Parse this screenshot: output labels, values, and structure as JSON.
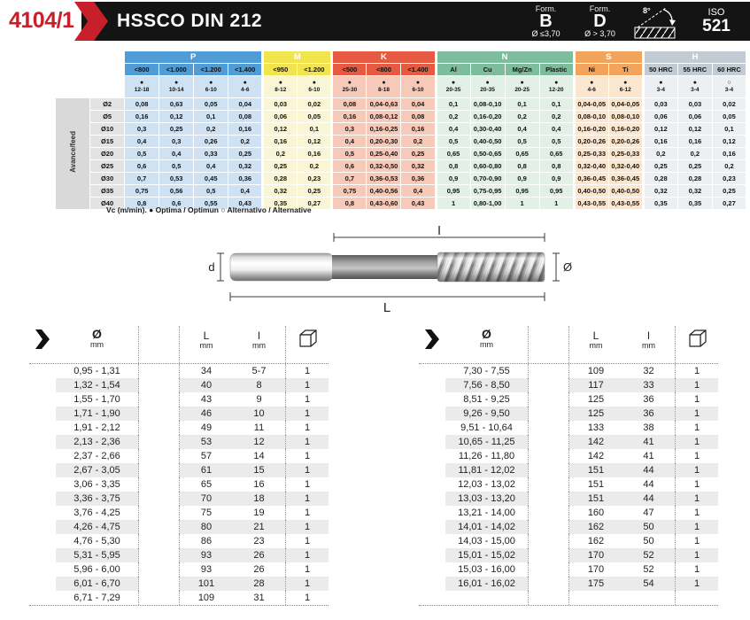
{
  "colors": {
    "accent_red": "#c8202a",
    "header_black": "#141414",
    "stripe": "#ebebeb"
  },
  "header": {
    "code": "4104/1",
    "title": "HSSCO DIN 212",
    "form_b": {
      "line1": "Form.",
      "line2": "B",
      "line3": "Ø ≤3,70"
    },
    "form_d": {
      "line1": "Form.",
      "line2": "D",
      "line3": "Ø > 3,70"
    },
    "angle": "8°",
    "iso": {
      "line1": "ISO",
      "line2": "521"
    }
  },
  "cutting_table": {
    "row_axis_label": "Avance/feed",
    "footnote": "Vc (m/min). ● Optima / Optimun   ○ Alternativo / Alternative",
    "groups": [
      {
        "name": "P",
        "color": "#4f9cd7",
        "tint": "#cfe2f3",
        "cols": [
          {
            "label": "<800",
            "marker": "filled",
            "vc": "12-18"
          },
          {
            "label": "<1.000",
            "marker": "filled",
            "vc": "10-14"
          },
          {
            "label": "<1.200",
            "marker": "filled",
            "vc": "6-10"
          },
          {
            "label": "<1.400",
            "marker": "filled",
            "vc": "4-6"
          }
        ]
      },
      {
        "name": "M",
        "color": "#f2e44c",
        "tint": "#faf5d4",
        "cols": [
          {
            "label": "<950",
            "marker": "filled",
            "vc": "8-12"
          },
          {
            "label": "<1.200",
            "marker": "filled",
            "vc": "6-10"
          }
        ]
      },
      {
        "name": "K",
        "color": "#e55a41",
        "tint": "#f6c9b9",
        "cols": [
          {
            "label": "<500",
            "marker": "filled",
            "vc": "25-30"
          },
          {
            "label": "<800",
            "marker": "filled",
            "vc": "8-18"
          },
          {
            "label": "<1.400",
            "marker": "filled",
            "vc": "6-10"
          }
        ]
      },
      {
        "name": "N",
        "color": "#7dbc9d",
        "tint": "#e3f0e7",
        "cols": [
          {
            "label": "Al",
            "marker": "filled",
            "vc": "20-35"
          },
          {
            "label": "Cu",
            "marker": "filled",
            "vc": "20-35"
          },
          {
            "label": "Mg/Zn",
            "marker": "filled",
            "vc": "20-25"
          },
          {
            "label": "Plastic",
            "marker": "filled",
            "vc": "12-20"
          }
        ]
      },
      {
        "name": "S",
        "color": "#f3a45c",
        "tint": "#fbe7d0",
        "cols": [
          {
            "label": "Ni",
            "marker": "filled",
            "vc": "4-6"
          },
          {
            "label": "Ti",
            "marker": "filled",
            "vc": "6-12"
          }
        ]
      },
      {
        "name": "H",
        "color": "#c2cbd4",
        "tint": "#edf0f3",
        "cols": [
          {
            "label": "50 HRC",
            "marker": "filled",
            "vc": "3-4"
          },
          {
            "label": "55 HRC",
            "marker": "filled",
            "vc": "3-4"
          },
          {
            "label": "60 HRC",
            "marker": "open",
            "vc": "3-4"
          }
        ]
      }
    ],
    "rows": [
      {
        "dia": "Ø2",
        "values": [
          "0,08",
          "0,63",
          "0,05",
          "0,04",
          "0,03",
          "0,02",
          "0,08",
          "0,04-0,63",
          "0,04",
          "0,1",
          "0,08-0,10",
          "0,1",
          "0,1",
          "0,04-0,05",
          "0,04-0,05",
          "0,03",
          "0,03",
          "0,02"
        ]
      },
      {
        "dia": "Ø5",
        "values": [
          "0,16",
          "0,12",
          "0,1",
          "0,08",
          "0,06",
          "0,05",
          "0,16",
          "0,08-0,12",
          "0,08",
          "0,2",
          "0,16-0,20",
          "0,2",
          "0,2",
          "0,08-0,10",
          "0,08-0,10",
          "0,06",
          "0,06",
          "0,05"
        ]
      },
      {
        "dia": "Ø10",
        "values": [
          "0,3",
          "0,25",
          "0,2",
          "0,16",
          "0,12",
          "0,1",
          "0,3",
          "0,16-0,25",
          "0,16",
          "0,4",
          "0,30-0,40",
          "0,4",
          "0,4",
          "0,16-0,20",
          "0,16-0,20",
          "0,12",
          "0,12",
          "0,1"
        ]
      },
      {
        "dia": "Ø15",
        "values": [
          "0,4",
          "0,3",
          "0,26",
          "0,2",
          "0,16",
          "0,12",
          "0,4",
          "0,20-0,30",
          "0,2",
          "0,5",
          "0,40-0,50",
          "0,5",
          "0,5",
          "0,20-0,26",
          "0,20-0,26",
          "0,16",
          "0,16",
          "0,12"
        ]
      },
      {
        "dia": "Ø20",
        "values": [
          "0,5",
          "0,4",
          "0,33",
          "0,25",
          "0,2",
          "0,16",
          "0,5",
          "0,25-0,40",
          "0,25",
          "0,65",
          "0,50-0,65",
          "0,65",
          "0,65",
          "0,25-0,33",
          "0,25-0,33",
          "0,2",
          "0,2",
          "0,16"
        ]
      },
      {
        "dia": "Ø25",
        "values": [
          "0,6",
          "0,5",
          "0,4",
          "0,32",
          "0,25",
          "0,2",
          "0,6",
          "0,32-0,50",
          "0,32",
          "0,8",
          "0,60-0,80",
          "0,8",
          "0,8",
          "0,32-0,40",
          "0,32-0,40",
          "0,25",
          "0,25",
          "0,2"
        ]
      },
      {
        "dia": "Ø30",
        "values": [
          "0,7",
          "0,53",
          "0,45",
          "0,36",
          "0,28",
          "0,23",
          "0,7",
          "0,36-0,53",
          "0,36",
          "0,9",
          "0,70-0,90",
          "0,9",
          "0,9",
          "0,36-0,45",
          "0,36-0,45",
          "0,28",
          "0,28",
          "0,23"
        ]
      },
      {
        "dia": "Ø35",
        "values": [
          "0,75",
          "0,56",
          "0,5",
          "0,4",
          "0,32",
          "0,25",
          "0,75",
          "0,40-0,56",
          "0,4",
          "0,95",
          "0,75-0,95",
          "0,95",
          "0,95",
          "0,40-0,50",
          "0,40-0,50",
          "0,32",
          "0,32",
          "0,25"
        ]
      },
      {
        "dia": "Ø40",
        "values": [
          "0,8",
          "0,6",
          "0,55",
          "0,43",
          "0,35",
          "0,27",
          "0,8",
          "0,43-0,60",
          "0,43",
          "1",
          "0,80-1,00",
          "1",
          "1",
          "0,43-0,55",
          "0,43-0,55",
          "0,35",
          "0,35",
          "0,27"
        ]
      }
    ]
  },
  "diagram": {
    "label_d": "d",
    "label_l": "l",
    "label_L": "L",
    "label_dia": "Ø"
  },
  "size_tables": {
    "header": {
      "dia": "Ø",
      "dia_unit": "mm",
      "L": "L",
      "L_unit": "mm",
      "l": "l",
      "l_unit": "mm"
    },
    "left_rows": [
      [
        "0,95 - 1,31",
        "34",
        "5-7",
        "1"
      ],
      [
        "1,32 - 1,54",
        "40",
        "8",
        "1"
      ],
      [
        "1,55 - 1,70",
        "43",
        "9",
        "1"
      ],
      [
        "1,71 - 1,90",
        "46",
        "10",
        "1"
      ],
      [
        "1,91 - 2,12",
        "49",
        "11",
        "1"
      ],
      [
        "2,13 - 2,36",
        "53",
        "12",
        "1"
      ],
      [
        "2,37 - 2,66",
        "57",
        "14",
        "1"
      ],
      [
        "2,67 - 3,05",
        "61",
        "15",
        "1"
      ],
      [
        "3,06 - 3,35",
        "65",
        "16",
        "1"
      ],
      [
        "3,36 - 3,75",
        "70",
        "18",
        "1"
      ],
      [
        "3,76 - 4,25",
        "75",
        "19",
        "1"
      ],
      [
        "4,26 - 4,75",
        "80",
        "21",
        "1"
      ],
      [
        "4,76 - 5,30",
        "86",
        "23",
        "1"
      ],
      [
        "5,31 - 5,95",
        "93",
        "26",
        "1"
      ],
      [
        "5,96 - 6,00",
        "93",
        "26",
        "1"
      ],
      [
        "6,01 - 6,70",
        "101",
        "28",
        "1"
      ],
      [
        "6,71 - 7,29",
        "109",
        "31",
        "1"
      ]
    ],
    "right_rows": [
      [
        "7,30 - 7,55",
        "109",
        "32",
        "1"
      ],
      [
        "7,56 - 8,50",
        "117",
        "33",
        "1"
      ],
      [
        "8,51 - 9,25",
        "125",
        "36",
        "1"
      ],
      [
        "9,26 - 9,50",
        "125",
        "36",
        "1"
      ],
      [
        "9,51 - 10,64",
        "133",
        "38",
        "1"
      ],
      [
        "10,65 - 11,25",
        "142",
        "41",
        "1"
      ],
      [
        "11,26 - 11,80",
        "142",
        "41",
        "1"
      ],
      [
        "11,81 - 12,02",
        "151",
        "44",
        "1"
      ],
      [
        "12,03 - 13,02",
        "151",
        "44",
        "1"
      ],
      [
        "13,03 - 13,20",
        "151",
        "44",
        "1"
      ],
      [
        "13,21 - 14,00",
        "160",
        "47",
        "1"
      ],
      [
        "14,01 - 14,02",
        "162",
        "50",
        "1"
      ],
      [
        "14,03 - 15,00",
        "162",
        "50",
        "1"
      ],
      [
        "15,01 - 15,02",
        "170",
        "52",
        "1"
      ],
      [
        "15,03 - 16,00",
        "170",
        "52",
        "1"
      ],
      [
        "16,01 - 16,02",
        "175",
        "54",
        "1"
      ],
      [
        "",
        "",
        "",
        ""
      ]
    ]
  }
}
